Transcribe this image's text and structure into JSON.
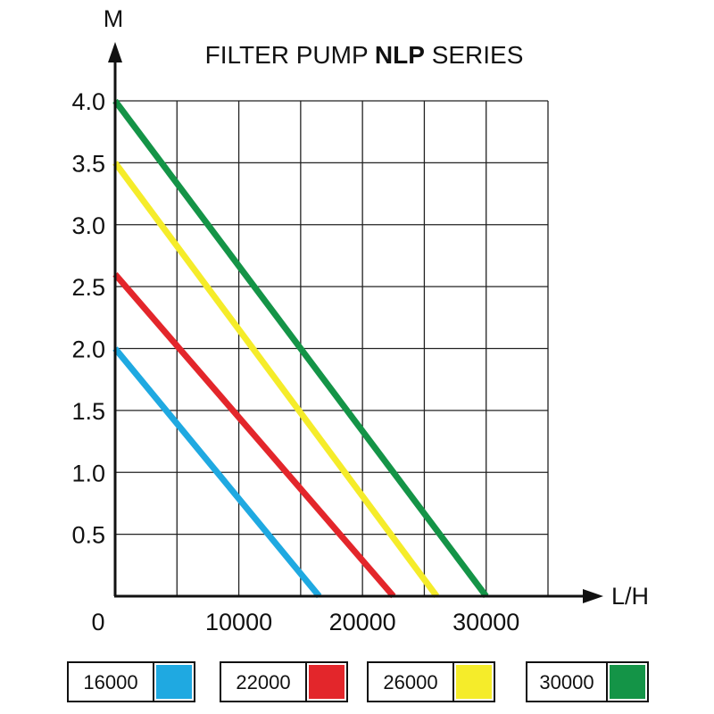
{
  "chart_data": {
    "type": "line",
    "title_parts": [
      "FILTER PUMP ",
      "NLP",
      " SERIES"
    ],
    "xlabel": "L/H",
    "ylabel": "M",
    "xlim": [
      0,
      35000
    ],
    "ylim": [
      0,
      4.0
    ],
    "origin_label": "0",
    "x_ticks": [
      10000,
      20000,
      30000
    ],
    "x_tick_labels": [
      "10000",
      "20000",
      "30000"
    ],
    "x_grid": [
      5000,
      10000,
      15000,
      20000,
      25000,
      30000,
      35000
    ],
    "y_ticks": [
      0.5,
      1.0,
      1.5,
      2.0,
      2.5,
      3.0,
      3.5,
      4.0
    ],
    "y_tick_labels": [
      "0.5",
      "1.0",
      "1.5",
      "2.0",
      "2.5",
      "3.0",
      "3.5",
      "4.0"
    ],
    "grid": true,
    "legend_position": "bottom",
    "series": [
      {
        "name": "16000",
        "color": "#1fa9e1",
        "x": [
          0,
          16500
        ],
        "y": [
          2.0,
          0
        ]
      },
      {
        "name": "22000",
        "color": "#e3262b",
        "x": [
          0,
          22500
        ],
        "y": [
          2.6,
          0
        ]
      },
      {
        "name": "26000",
        "color": "#f5ec2a",
        "x": [
          0,
          26000
        ],
        "y": [
          3.5,
          0
        ]
      },
      {
        "name": "30000",
        "color": "#149447",
        "x": [
          0,
          30000
        ],
        "y": [
          4.0,
          0
        ]
      }
    ]
  }
}
